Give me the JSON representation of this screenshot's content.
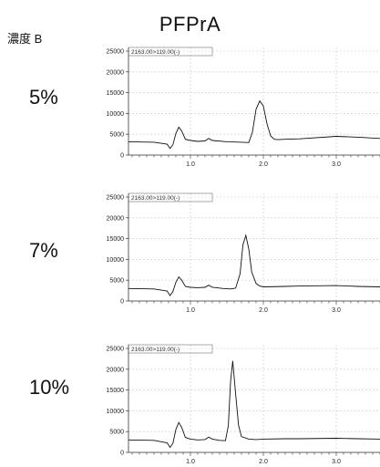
{
  "figure": {
    "title": "PFPrA",
    "concentration_header": "濃度 B"
  },
  "chart_data": [
    {
      "type": "line",
      "row_label": "5%",
      "trace_header": "2163.00>119.00(-)",
      "ylim": [
        0,
        25000
      ],
      "yticks": [
        0,
        5000,
        10000,
        15000,
        20000,
        25000
      ],
      "ytick_labels": [
        "0",
        "5000",
        "10000",
        "15000",
        "20000",
        "25000"
      ],
      "xlim": [
        0.15,
        3.6
      ],
      "xticks": [
        1.0,
        2.0,
        3.0
      ],
      "xtick_labels": [
        "1.0",
        "2.0",
        "3.0"
      ],
      "x": [
        0.15,
        0.5,
        0.68,
        0.72,
        0.76,
        0.8,
        0.84,
        0.88,
        0.93,
        1.0,
        1.1,
        1.2,
        1.25,
        1.3,
        1.5,
        1.7,
        1.8,
        1.85,
        1.9,
        1.95,
        2.0,
        2.05,
        2.1,
        2.15,
        2.2,
        2.3,
        2.5,
        3.0,
        3.3,
        3.6
      ],
      "y": [
        3200,
        3100,
        2600,
        1600,
        2500,
        5200,
        6700,
        5800,
        3800,
        3500,
        3300,
        3400,
        4000,
        3500,
        3200,
        3100,
        3000,
        5500,
        11000,
        13000,
        11800,
        7500,
        4600,
        3800,
        3700,
        3800,
        3900,
        4500,
        4300,
        4000
      ]
    },
    {
      "type": "line",
      "row_label": "7%",
      "trace_header": "2163.00>119.00(-)",
      "ylim": [
        0,
        25000
      ],
      "yticks": [
        0,
        5000,
        10000,
        15000,
        20000,
        25000
      ],
      "ytick_labels": [
        "0",
        "5000",
        "10000",
        "15000",
        "20000",
        "25000"
      ],
      "xlim": [
        0.15,
        3.6
      ],
      "xticks": [
        1.0,
        2.0,
        3.0
      ],
      "xtick_labels": [
        "1.0",
        "2.0",
        "3.0"
      ],
      "x": [
        0.15,
        0.5,
        0.68,
        0.72,
        0.76,
        0.8,
        0.84,
        0.88,
        0.93,
        1.0,
        1.1,
        1.2,
        1.25,
        1.3,
        1.45,
        1.55,
        1.62,
        1.68,
        1.72,
        1.76,
        1.8,
        1.84,
        1.9,
        1.95,
        2.0,
        2.3,
        2.5,
        3.0,
        3.3,
        3.6
      ],
      "y": [
        3000,
        2900,
        2400,
        1300,
        2300,
        4500,
        5800,
        5000,
        3500,
        3300,
        3200,
        3300,
        3800,
        3300,
        3000,
        2900,
        3100,
        6500,
        13500,
        15800,
        12500,
        7000,
        4200,
        3600,
        3400,
        3500,
        3600,
        3700,
        3500,
        3400
      ]
    },
    {
      "type": "line",
      "row_label": "10%",
      "trace_header": "2163.00>119.00(-)",
      "ylim": [
        0,
        25000
      ],
      "yticks": [
        0,
        5000,
        10000,
        15000,
        20000,
        25000
      ],
      "ytick_labels": [
        "0",
        "5000",
        "10000",
        "15000",
        "20000",
        "25000"
      ],
      "xlim": [
        0.15,
        3.6
      ],
      "xticks": [
        1.0,
        2.0,
        3.0
      ],
      "xtick_labels": [
        "1.0",
        "2.0",
        "3.0"
      ],
      "x": [
        0.15,
        0.5,
        0.68,
        0.72,
        0.76,
        0.8,
        0.84,
        0.88,
        0.93,
        1.0,
        1.1,
        1.2,
        1.25,
        1.3,
        1.4,
        1.48,
        1.52,
        1.55,
        1.58,
        1.62,
        1.66,
        1.7,
        1.8,
        1.9,
        2.0,
        2.3,
        2.5,
        3.0,
        3.3,
        3.6
      ],
      "y": [
        3000,
        2900,
        2300,
        1200,
        2200,
        5500,
        7200,
        6000,
        3600,
        3200,
        3000,
        3100,
        3700,
        3200,
        2900,
        2800,
        6500,
        17000,
        22000,
        14000,
        6500,
        3800,
        3200,
        3100,
        3200,
        3300,
        3300,
        3400,
        3300,
        3200
      ]
    }
  ]
}
